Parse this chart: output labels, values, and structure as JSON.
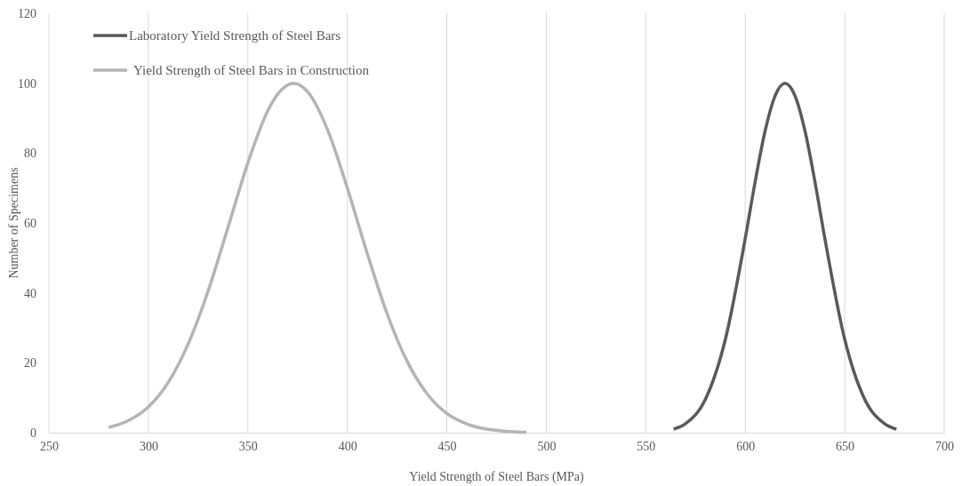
{
  "chart_data": {
    "type": "line",
    "xlabel": "Yield Strength of Steel Bars (MPa)",
    "ylabel": "Number of Specimens",
    "xlim": [
      250,
      700
    ],
    "xticks": [
      250,
      300,
      350,
      400,
      450,
      500,
      550,
      600,
      650,
      700
    ],
    "ylim": [
      0,
      120
    ],
    "yticks": [
      0,
      20,
      40,
      60,
      80,
      100,
      120
    ],
    "grid": "x",
    "legend": "top left",
    "marker": "none",
    "line_style": "solid",
    "series": [
      {
        "name": "Laboratory Yield Strength of Steel Bars",
        "color": "#595959",
        "x": [
          564,
          570,
          580,
          590,
          600,
          605,
          610,
          615,
          620,
          625,
          630,
          635,
          640,
          650,
          660,
          670,
          676
        ],
        "values": [
          1,
          2.6,
          9.6,
          26.7,
          55.6,
          71.9,
          86.4,
          96.4,
          100,
          96.4,
          86.4,
          71.9,
          55.6,
          26.7,
          9.6,
          2.6,
          1
        ]
      },
      {
        "name": "Yield Strength of Steel Bars in Construction",
        "color": "#b4b4b4",
        "x": [
          280,
          290,
          300,
          310,
          320,
          330,
          340,
          350,
          360,
          365,
          373,
          380,
          390,
          400,
          410,
          420,
          430,
          440,
          450,
          460,
          470,
          480,
          490
        ],
        "values": [
          1.5,
          3.5,
          7.4,
          14.4,
          25.4,
          40.5,
          58.7,
          77.2,
          92.1,
          96.9,
          100,
          97.6,
          86.8,
          70,
          51.3,
          34,
          20.5,
          11.2,
          5.5,
          2.5,
          1,
          0.4,
          0.1
        ]
      }
    ]
  }
}
